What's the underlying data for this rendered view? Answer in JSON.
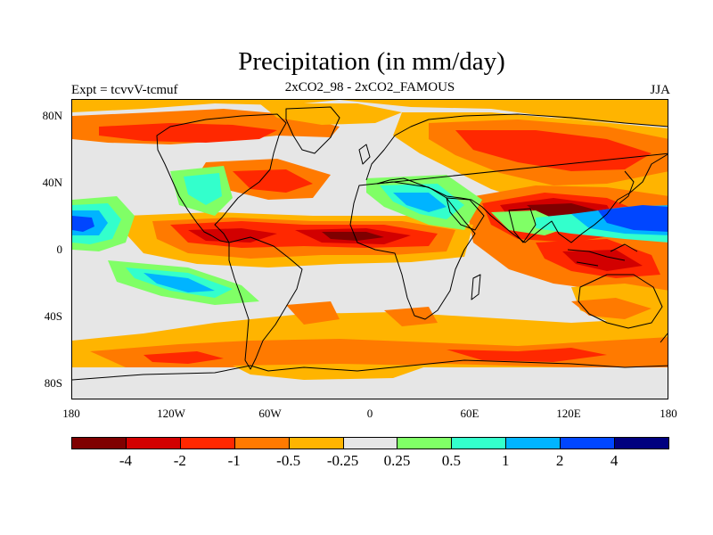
{
  "header": {
    "title": "Precipitation (in mm/day)",
    "left_label": "Expt = tcvvV-tcmuf",
    "center_label": "2xCO2_98 - 2xCO2_FAMOUS",
    "right_label": "JJA"
  },
  "axes": {
    "lat_labels": [
      "80N",
      "40N",
      "0",
      "40S",
      "80S"
    ],
    "lon_labels": [
      "180",
      "120W",
      "60W",
      "0",
      "60E",
      "120E",
      "180"
    ]
  },
  "legend": {
    "labels": [
      "-4",
      "-2",
      "-1",
      "-0.5",
      "-0.25",
      "0.25",
      "0.5",
      "1",
      "2",
      "4"
    ],
    "colors": [
      "#7f0000",
      "#d20000",
      "#ff2800",
      "#ff7a00",
      "#ffb400",
      "#e6e6e6",
      "#80ff66",
      "#33ffcc",
      "#00b4ff",
      "#0046ff",
      "#00007f"
    ]
  },
  "map": {
    "background_color": "#e6e6e6",
    "coastline_color": "#000000"
  }
}
